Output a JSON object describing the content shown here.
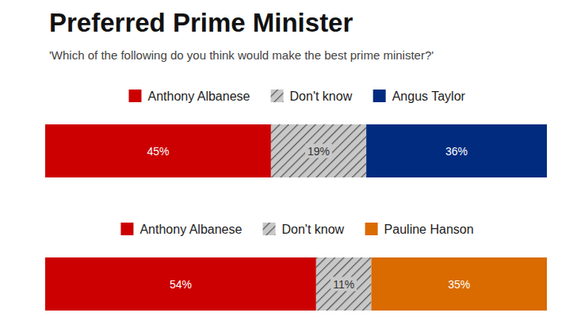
{
  "chart_data": [
    {
      "type": "bar",
      "title": "Preferred Prime Minister",
      "subtitle": "'Which of the following do you think would make the best prime minister?'",
      "orientation": "horizontal",
      "stacked": true,
      "data_labels": true,
      "tick_labels": false,
      "legend": "top",
      "categories": [
        null
      ],
      "xlim": [
        0,
        100
      ],
      "series": [
        {
          "name": "Anthony Albanese",
          "color": "#cc0000",
          "values": [
            45
          ],
          "value_labels": [
            "45%"
          ]
        },
        {
          "name": "Don't know",
          "color": "#c8c8c8",
          "values": [
            19
          ],
          "value_labels": [
            "19%"
          ]
        },
        {
          "name": "Angus Taylor",
          "color": "#002b7f",
          "values": [
            36
          ],
          "value_labels": [
            "36%"
          ]
        }
      ]
    },
    {
      "type": "bar",
      "orientation": "horizontal",
      "stacked": true,
      "data_labels": true,
      "tick_labels": false,
      "legend": "top",
      "categories": [
        null
      ],
      "xlim": [
        0,
        100
      ],
      "series": [
        {
          "name": "Anthony Albanese",
          "color": "#cc0000",
          "values": [
            54
          ],
          "value_labels": [
            "54%"
          ]
        },
        {
          "name": "Don't know",
          "color": "#c8c8c8",
          "values": [
            11
          ],
          "value_labels": [
            "11%"
          ]
        },
        {
          "name": "Pauline Hanson",
          "color": "#d96b00",
          "values": [
            35
          ],
          "value_labels": [
            "35%"
          ]
        }
      ]
    }
  ]
}
